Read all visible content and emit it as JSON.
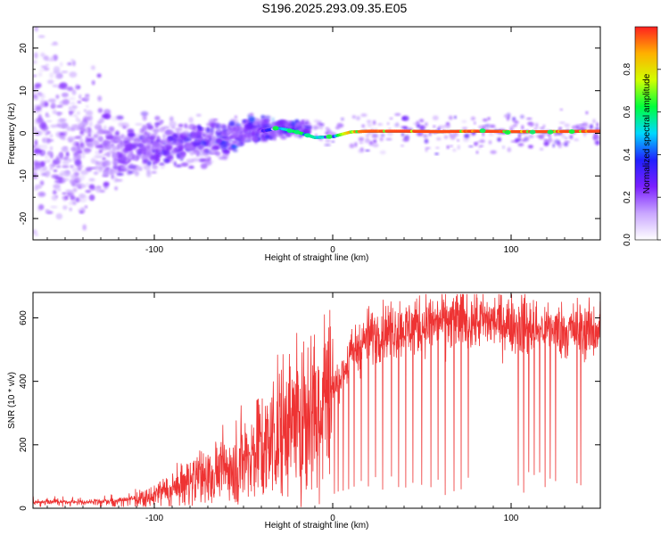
{
  "title": "S196.2025.293.09.35.E05",
  "chart_data": [
    {
      "type": "heatmap",
      "name": "spectrogram",
      "xlabel": "Height of straight line (km)",
      "ylabel": "Frequency (Hz)",
      "xlim": [
        -168,
        150
      ],
      "ylim": [
        -25,
        25
      ],
      "xticks": [
        -100,
        0,
        100
      ],
      "yticks": [
        -20,
        -10,
        0,
        10,
        20
      ],
      "colorbar": {
        "label": "Normalized spectral amplitude",
        "range": [
          0,
          1
        ],
        "ticks": [
          "0.0",
          "0.2",
          "0.4",
          "0.6",
          "0.8"
        ],
        "colors": [
          "#ffffff",
          "#c9a6ff",
          "#7b1fff",
          "#2020ff",
          "#00d8ff",
          "#00ff3c",
          "#d2ff00",
          "#ffb000",
          "#ff2020"
        ]
      },
      "ridge": {
        "description": "narrow carrier line near 0 Hz",
        "x": [
          -40,
          -30,
          -20,
          -10,
          0,
          10,
          20,
          40,
          60,
          80,
          100,
          120,
          150
        ],
        "frequency_hz": [
          0.5,
          1.2,
          0.3,
          -1.0,
          -0.8,
          0.3,
          0.5,
          0.5,
          0.4,
          0.5,
          0.4,
          0.4,
          0.5
        ],
        "amplitude": [
          0.3,
          0.45,
          0.65,
          0.55,
          0.5,
          0.9,
          0.95,
          0.97,
          0.96,
          0.97,
          0.96,
          0.96,
          0.97
        ]
      },
      "scatter_trend": {
        "description": "broad dispersed energy converging toward 0 Hz with height",
        "x": [
          -168,
          -120,
          -100,
          -80,
          -60,
          -45,
          -30
        ],
        "center_hz": [
          0,
          -4,
          -3,
          -2,
          -1,
          1,
          1
        ],
        "spread_hz": [
          25,
          6,
          5,
          4,
          4,
          3,
          2
        ]
      }
    },
    {
      "type": "line",
      "name": "snr",
      "xlabel": "Height of straight line (km)",
      "ylabel": "SNR (10 * v/v)",
      "xlim": [
        -168,
        150
      ],
      "ylim": [
        0,
        680
      ],
      "xticks": [
        -100,
        0,
        100
      ],
      "yticks": [
        0,
        200,
        400,
        600
      ],
      "color": "#ee3333",
      "series": [
        {
          "name": "SNR",
          "x": [
            -168,
            -140,
            -120,
            -100,
            -90,
            -80,
            -70,
            -60,
            -50,
            -40,
            -30,
            -20,
            -10,
            0,
            5,
            10,
            20,
            30,
            50,
            70,
            90,
            110,
            130,
            150
          ],
          "y": [
            20,
            20,
            25,
            40,
            60,
            90,
            110,
            130,
            160,
            200,
            250,
            300,
            330,
            370,
            420,
            480,
            540,
            560,
            580,
            590,
            590,
            570,
            560,
            560
          ]
        }
      ],
      "dropouts_x": [
        1,
        3,
        6,
        9,
        12,
        16,
        20,
        24,
        28,
        33,
        37,
        41,
        45,
        50,
        55,
        59,
        63,
        68,
        72,
        76,
        104,
        107,
        110,
        113,
        116,
        119,
        122,
        125,
        137,
        139
      ]
    }
  ]
}
